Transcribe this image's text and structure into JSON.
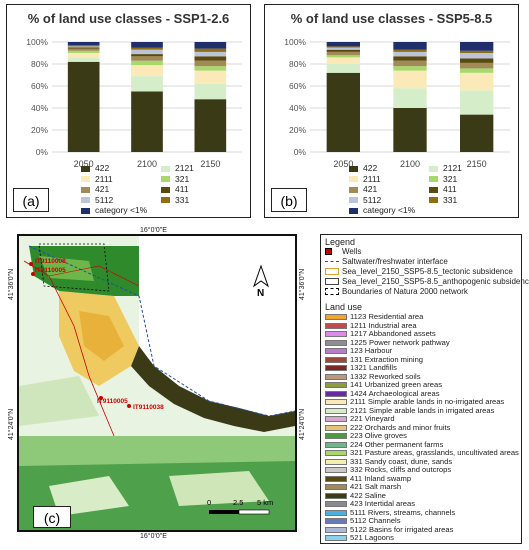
{
  "chart_data": [
    {
      "type": "bar",
      "stacked": true,
      "title": "% of land use classes - SSP1-2.6",
      "panel_label": "(a)",
      "categories": [
        "2050",
        "2100",
        "2150"
      ],
      "ylim": [
        0,
        100
      ],
      "yticks": [
        "0%",
        "20%",
        "40%",
        "60%",
        "80%",
        "100%"
      ],
      "grid": true,
      "series": [
        {
          "name": "422",
          "color": "#3b3a16",
          "values": [
            82,
            55,
            48
          ]
        },
        {
          "name": "2121",
          "color": "#d5eec9",
          "values": [
            4,
            14,
            14
          ]
        },
        {
          "name": "2111",
          "color": "#fbe9b7",
          "values": [
            4,
            10,
            12
          ]
        },
        {
          "name": "321",
          "color": "#a6d86c",
          "values": [
            2,
            4,
            4
          ]
        },
        {
          "name": "421",
          "color": "#a28a58",
          "values": [
            2,
            4,
            5
          ]
        },
        {
          "name": "411",
          "color": "#5a4a0e",
          "values": [
            1,
            2,
            4
          ]
        },
        {
          "name": "5112",
          "color": "#bcc4d8",
          "values": [
            1,
            4,
            4
          ]
        },
        {
          "name": "331",
          "color": "#8f6d12",
          "values": [
            1,
            2,
            3
          ]
        },
        {
          "name": "category <1%",
          "color": "#1f2f6b",
          "values": [
            3,
            5,
            6
          ]
        }
      ]
    },
    {
      "type": "bar",
      "stacked": true,
      "title": "% of land use classes - SSP5-8.5",
      "panel_label": "(b)",
      "categories": [
        "2050",
        "2100",
        "2150"
      ],
      "ylim": [
        0,
        100
      ],
      "yticks": [
        "0%",
        "20%",
        "40%",
        "60%",
        "80%",
        "100%"
      ],
      "grid": true,
      "series": [
        {
          "name": "422",
          "color": "#3b3a16",
          "values": [
            72,
            40,
            34
          ]
        },
        {
          "name": "2121",
          "color": "#d5eec9",
          "values": [
            8,
            18,
            22
          ]
        },
        {
          "name": "2111",
          "color": "#fbe9b7",
          "values": [
            6,
            16,
            16
          ]
        },
        {
          "name": "321",
          "color": "#a6d86c",
          "values": [
            2,
            4,
            4
          ]
        },
        {
          "name": "421",
          "color": "#a28a58",
          "values": [
            3,
            5,
            5
          ]
        },
        {
          "name": "411",
          "color": "#5a4a0e",
          "values": [
            2,
            4,
            4
          ]
        },
        {
          "name": "5112",
          "color": "#bcc4d8",
          "values": [
            2,
            4,
            5
          ]
        },
        {
          "name": "331",
          "color": "#8f6d12",
          "values": [
            1,
            2,
            2
          ]
        },
        {
          "name": "category <1%",
          "color": "#1f2f6b",
          "values": [
            4,
            7,
            8
          ]
        }
      ]
    }
  ],
  "map": {
    "panel_label": "(c)",
    "top_lon": "16°0'0\"E",
    "bottom_lon": "16°0'0\"E",
    "left_lat_top": "41°36'0\"N",
    "left_lat_bottom": "41°24'0\"N",
    "right_lat_top": "41°36'0\"N",
    "right_lat_bottom": "41°24'0\"N",
    "scale_labels": [
      "0",
      "2.5",
      "5 km"
    ],
    "north_label": "N",
    "well_labels": [
      "IT9110008",
      "IT9110005",
      "IT9110005",
      "IT9110038"
    ]
  },
  "legend": {
    "title": "Legend",
    "items": [
      {
        "label": "Wells",
        "color": "#cc0000",
        "kind": "dot"
      },
      {
        "label": "Saltwater/freshwater interface",
        "color": "#1f4ea8",
        "kind": "dash"
      },
      {
        "label": "Sea_level_2150_SSP5-8.5_tectonic subsidence",
        "color": "#e0a030",
        "kind": "box"
      },
      {
        "label": "Sea_level_2150_SSP5-8.5_anthopogenic subsidence",
        "color": "#444444",
        "kind": "box"
      },
      {
        "label": "Boundaries of Natura 2000 network",
        "color": "#000000",
        "kind": "dashbox"
      }
    ],
    "land_use_title": "Land use",
    "land_use": [
      {
        "label": "1123 Residential area",
        "color": "#f2a52e"
      },
      {
        "label": "1211 Industrial area",
        "color": "#c44a4a"
      },
      {
        "label": "1217 Abbandoned assets",
        "color": "#e08ae8"
      },
      {
        "label": "1225 Power network pathway",
        "color": "#8e8e8e"
      },
      {
        "label": "123 Harbour",
        "color": "#b77ccc"
      },
      {
        "label": "131 Extraction mining",
        "color": "#9a4a3a"
      },
      {
        "label": "1321 Landfills",
        "color": "#7a2a22"
      },
      {
        "label": "1332 Reworked soils",
        "color": "#b99a7a"
      },
      {
        "label": "141 Urbanized green areas",
        "color": "#8a9e3c"
      },
      {
        "label": "1424 Archaeological areas",
        "color": "#6a2aa8"
      },
      {
        "label": "2111 Simple arable lands in no-irrigated areas",
        "color": "#fbe9b7"
      },
      {
        "label": "2121 Simple arable lands in irrigated areas",
        "color": "#d5eec9"
      },
      {
        "label": "221 Vineyard",
        "color": "#d9a8d0"
      },
      {
        "label": "222 Orchards and minor fruits",
        "color": "#e8c47a"
      },
      {
        "label": "223 Olive groves",
        "color": "#4a9c3e"
      },
      {
        "label": "224 Other permanent farms",
        "color": "#6fb68a"
      },
      {
        "label": "321 Pasture areas, grasslands, uncultivated areas",
        "color": "#a6d86c"
      },
      {
        "label": "331 Sandy coast, dune, sands",
        "color": "#f5f0b0"
      },
      {
        "label": "332 Rocks, cliffs and outcrops",
        "color": "#c9c9c9"
      },
      {
        "label": "411 Inland swamp",
        "color": "#5a4a0e"
      },
      {
        "label": "421 Salt marsh",
        "color": "#a28a58"
      },
      {
        "label": "422 Saline",
        "color": "#3b3a16"
      },
      {
        "label": "423 Intertidal areas",
        "color": "#8a8a8a"
      },
      {
        "label": "5111 Rivers, streams, channels",
        "color": "#4ab0e0"
      },
      {
        "label": "5112 Channels",
        "color": "#6a7ab8"
      },
      {
        "label": "5122 Basins for irrigated areas",
        "color": "#b0b8d8"
      },
      {
        "label": "521 Lagoons",
        "color": "#8ad0e8"
      }
    ]
  }
}
